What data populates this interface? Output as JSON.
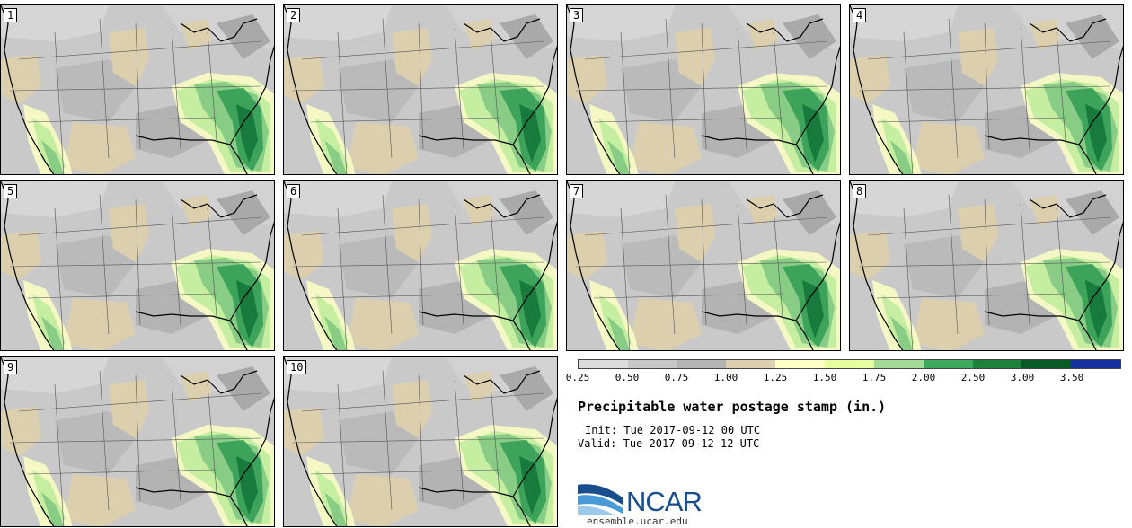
{
  "title": "Precipitable water postage stamp (in.)",
  "init_label": "Init:",
  "init_time": "Tue 2017-09-12 00 UTC",
  "valid_label": "Valid:",
  "valid_time": "Tue 2017-09-12 12 UTC",
  "logo_text": "NCAR",
  "website": "ensemble.ucar.edu",
  "members": [
    "1",
    "2",
    "3",
    "4",
    "5",
    "6",
    "7",
    "8",
    "9",
    "10"
  ],
  "colorbar": {
    "ticks": [
      "0.25",
      "0.50",
      "0.75",
      "1.00",
      "1.25",
      "1.50",
      "1.75",
      "2.00",
      "2.50",
      "3.00",
      "3.50"
    ],
    "colors": [
      "#dcdcdc",
      "#c8c8c8",
      "#b4b4b4",
      "#ddd0b0",
      "#ffffc8",
      "#e6ffa0",
      "#a0dc96",
      "#3caa5a",
      "#1e823c",
      "#0a5a28",
      "#1432a0"
    ]
  },
  "palette": {
    "gray_light": "#d4d4d4",
    "gray_mid": "#bdbdbd",
    "gray_dark": "#a4a4a4",
    "tan": "#dccfae",
    "yellow": "#f5f8c4",
    "lightgreen": "#c6eea0",
    "green": "#88cc86",
    "darkgreen": "#3ea35a",
    "deepgreen": "#187a3c"
  }
}
